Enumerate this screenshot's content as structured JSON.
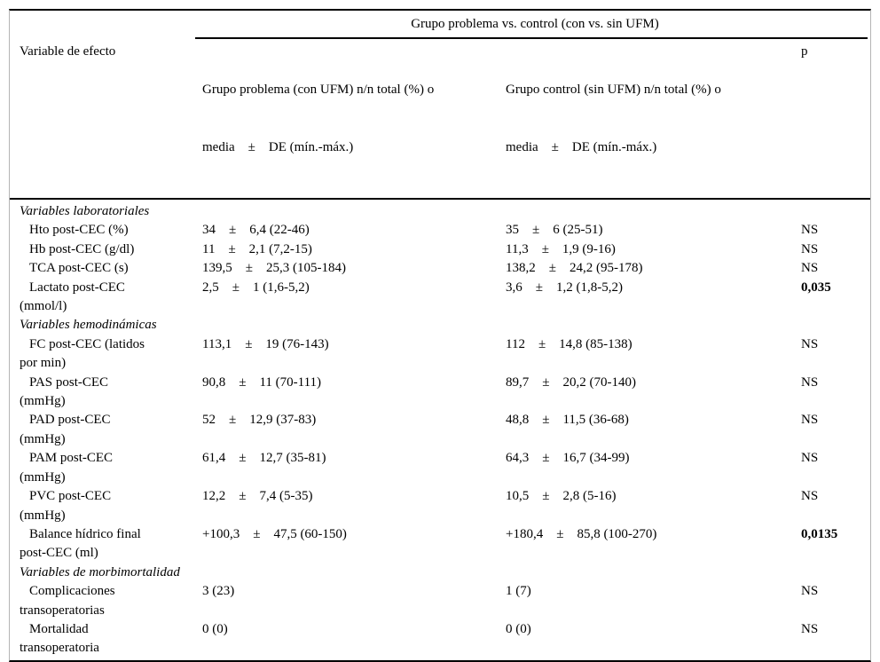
{
  "table": {
    "span_header": "Grupo problema vs. control (con vs. sin UFM)",
    "columns": {
      "variable": "Variable de efecto",
      "problema_line1": "Grupo problema (con UFM) n/n total (%) o",
      "problema_line2": "media    ±    DE (mín.-máx.)",
      "control_line1": "Grupo control (sin UFM) n/n total (%) o",
      "control_line2": "media    ±    DE (mín.-máx.)",
      "p": "p"
    },
    "rows": [
      {
        "type": "section",
        "label": "Variables laboratoriales"
      },
      {
        "l1": "Hto post-CEC (%)",
        "g1": "34    ±    6,4 (22-46)",
        "g2": "35    ±    6 (25-51)",
        "p": "NS"
      },
      {
        "l1": "Hb post-CEC (g/dl)",
        "g1": "11    ±    2,1 (7,2-15)",
        "g2": "11,3    ±    1,9 (9-16)",
        "p": "NS"
      },
      {
        "l1": "TCA post-CEC (s)",
        "g1": "139,5    ±    25,3 (105-184)",
        "g2": "138,2    ±    24,2 (95-178)",
        "p": "NS"
      },
      {
        "l1": "Lactato post-CEC",
        "l2": "(mmol/l)",
        "g1": "2,5    ±    1 (1,6-5,2)",
        "g2": "3,6    ±    1,2 (1,8-5,2)",
        "p": "0,035"
      },
      {
        "type": "section",
        "label": "Variables hemodinámicas"
      },
      {
        "l1": "FC post-CEC (latidos",
        "l2": "por min)",
        "g1": "113,1    ±    19 (76-143)",
        "g2": "112    ±    14,8 (85-138)",
        "p": "NS"
      },
      {
        "l1": "PAS post-CEC",
        "l2": "(mmHg)",
        "g1": "90,8    ±    11 (70-111)",
        "g2": "89,7    ±    20,2 (70-140)",
        "p": "NS"
      },
      {
        "l1": "PAD post-CEC",
        "l2": "(mmHg)",
        "g1": "52    ±    12,9 (37-83)",
        "g2": "48,8    ±    11,5 (36-68)",
        "p": "NS"
      },
      {
        "l1": "PAM post-CEC",
        "l2": "(mmHg)",
        "g1": "61,4    ±    12,7 (35-81)",
        "g2": "64,3    ±    16,7 (34-99)",
        "p": "NS"
      },
      {
        "l1": "PVC post-CEC",
        "l2": "(mmHg)",
        "g1": "12,2    ±    7,4 (5-35)",
        "g2": "10,5    ±    2,8 (5-16)",
        "p": "NS"
      },
      {
        "l1": "Balance hídrico final",
        "l2": "post-CEC (ml)",
        "g1": "+100,3    ±    47,5 (60-150)",
        "g2": "+180,4    ±    85,8 (100-270)",
        "p": "0,0135"
      },
      {
        "type": "section",
        "label": "Variables de morbimortalidad"
      },
      {
        "l1": "Complicaciones",
        "l2": "transoperatorias",
        "g1": "3 (23)",
        "g2": "1 (7)",
        "p": "NS"
      },
      {
        "l1": "Mortalidad",
        "l2": "transoperatoria",
        "g1": "0 (0)",
        "g2": "0 (0)",
        "p": "NS"
      }
    ]
  }
}
